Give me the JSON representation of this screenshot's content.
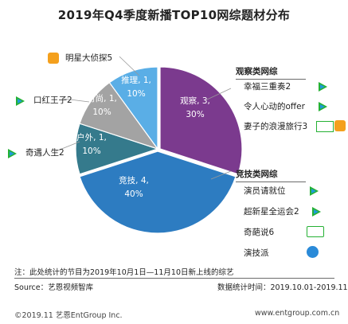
{
  "title": "2019年Q4季度新播TOP10网综题材分布",
  "chart_data": {
    "type": "pie",
    "title": "2019年Q4季度新播TOP10网综题材分布",
    "slices": [
      {
        "name": "观察",
        "count": 3,
        "percent": 30,
        "label": [
          "观察, 3,",
          "30%"
        ],
        "color": "#7b3a8e"
      },
      {
        "name": "竞技",
        "count": 4,
        "percent": 40,
        "label": [
          "竞技, 4,",
          "40%"
        ],
        "color": "#2d7cc1"
      },
      {
        "name": "户外",
        "count": 1,
        "percent": 10,
        "label": [
          "户外, 1,",
          "10%"
        ],
        "color": "#357a8c"
      },
      {
        "name": "时尚",
        "count": 1,
        "percent": 10,
        "label": [
          "时尚, 1,",
          "10%"
        ],
        "color": "#a3a3a3"
      },
      {
        "name": "推理",
        "count": 1,
        "percent": 10,
        "label": [
          "推理, 1,",
          "10%"
        ],
        "color": "#5aaee6"
      }
    ]
  },
  "callouts": {
    "mingxing": "明星大侦探5",
    "kouhong": "口红王子2",
    "qiyu": "奇遇人生2"
  },
  "observation": {
    "header": "观察类网综",
    "items": [
      "幸福三重奏2",
      "令人心动的offer",
      "妻子的浪漫旅行3"
    ]
  },
  "competition": {
    "header": "竞技类网综",
    "items": [
      "演员请就位",
      "超新星全运会2",
      "奇葩说6",
      "演技派"
    ]
  },
  "note": "注：此处统计的节目为2019年10月1日—11月10日新上线的综艺",
  "source": "Source：艺恩视频智库",
  "stat_time": "数据统计时间：2019.10.01-2019.11.10",
  "copyright": "©2019.11 艺恩EntGroup Inc.",
  "website": "www.entgroup.com.cn",
  "colors": {
    "tencent": "#1e9bd8",
    "iqiyi": "#25b134",
    "mango": "#f4a01d",
    "youku": "#2a8ad8",
    "rule": "#6b6b6b"
  }
}
